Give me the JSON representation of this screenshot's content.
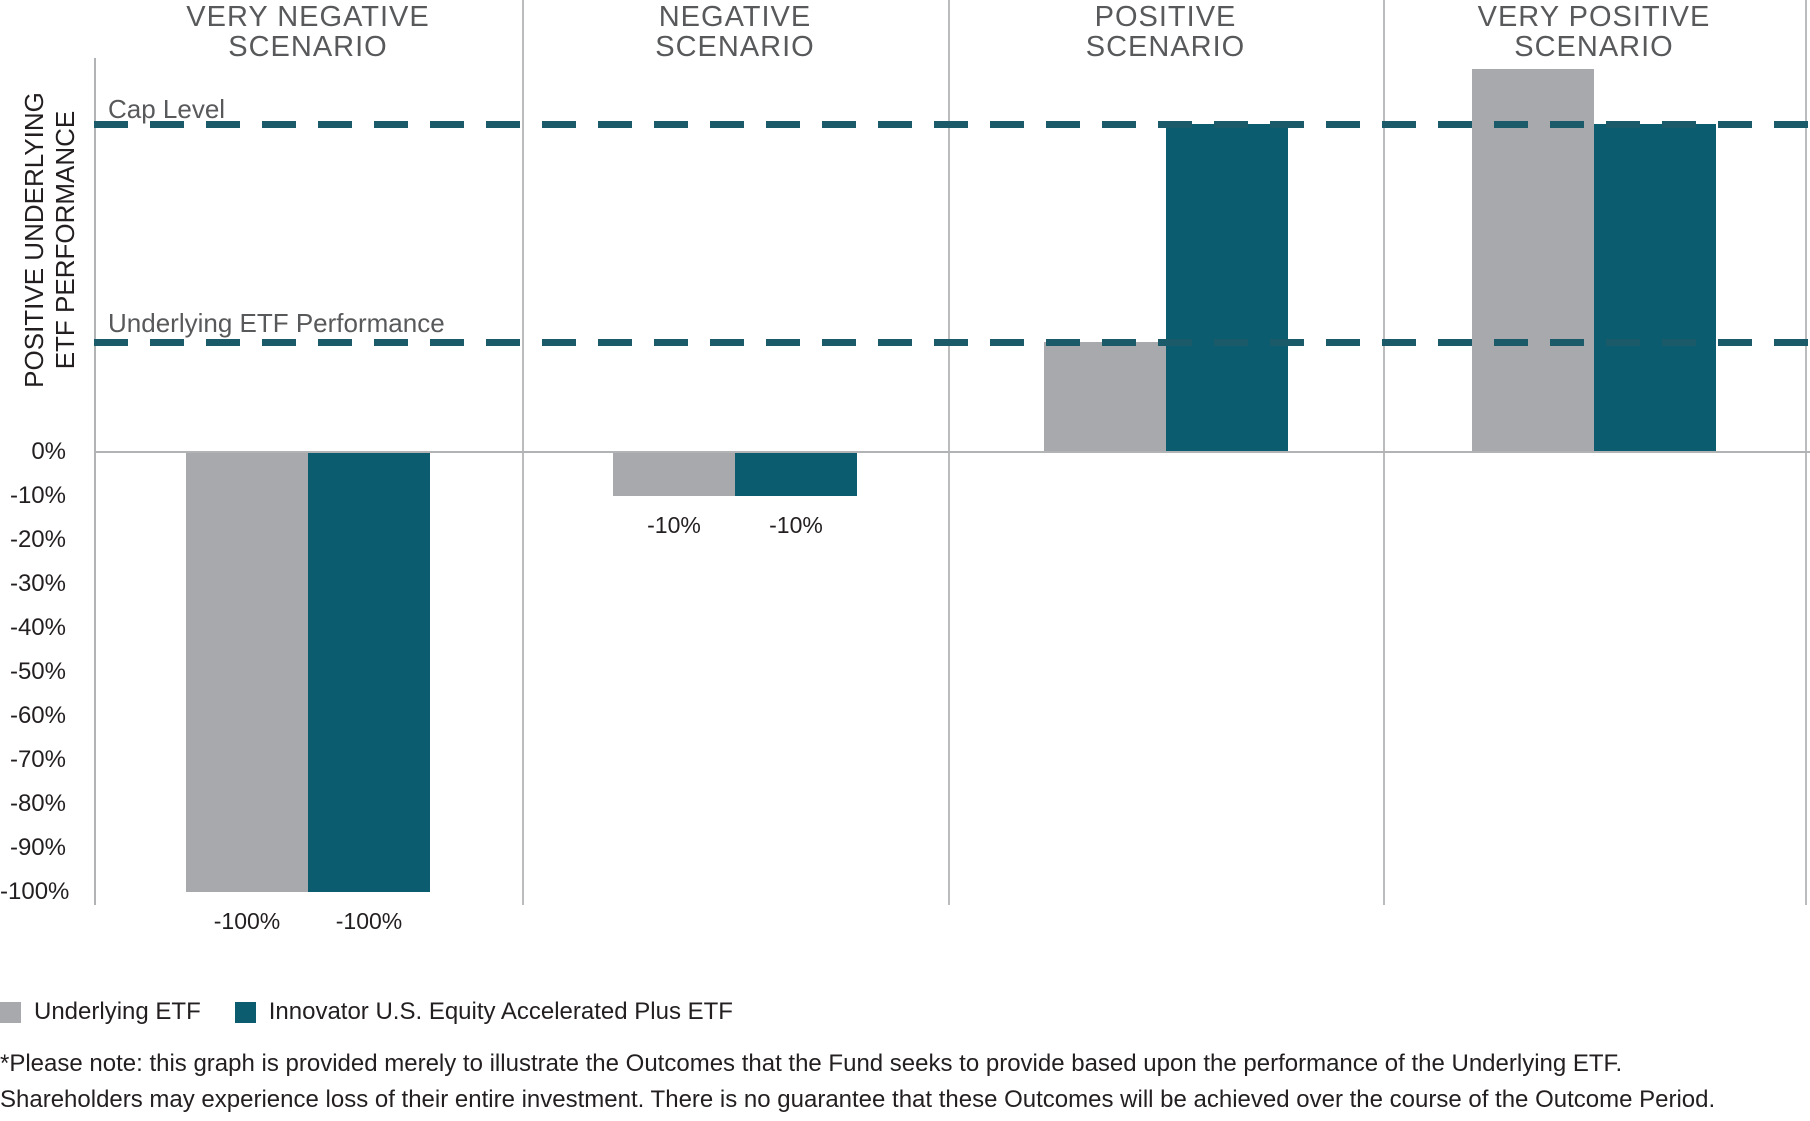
{
  "chart_data": {
    "type": "bar",
    "title": "",
    "y_axis": {
      "label_lines": [
        "POSITIVE UNDERLYING",
        "ETF PERFORMANCE"
      ],
      "ticks": [
        {
          "label": "0%",
          "value": 0
        },
        {
          "label": "-10%",
          "value": -10
        },
        {
          "label": "-20%",
          "value": -20
        },
        {
          "label": "-30%",
          "value": -30
        },
        {
          "label": "-40%",
          "value": -40
        },
        {
          "label": "-50%",
          "value": -50
        },
        {
          "label": "-60%",
          "value": -60
        },
        {
          "label": "-70%",
          "value": -70
        },
        {
          "label": "-80%",
          "value": -80
        },
        {
          "label": "-90%",
          "value": -90
        },
        {
          "label": "-100%",
          "value": -100
        }
      ],
      "numeric_range_shown": [
        0,
        -100
      ]
    },
    "reference_lines": [
      {
        "label": "Cap Level",
        "approx_value_pct": 74.5
      },
      {
        "label": "Underlying ETF Performance",
        "approx_value_pct": 25
      }
    ],
    "series_names": [
      "Underlying ETF",
      "Innovator U.S. Equity Accelerated Plus ETF"
    ],
    "panels": [
      {
        "key": "very-negative",
        "title_lines": [
          "VERY NEGATIVE",
          "SCENARIO"
        ],
        "values": {
          "underlying": -100,
          "innovator": -100
        },
        "value_labels": {
          "underlying": "-100%",
          "innovator": "-100%"
        }
      },
      {
        "key": "negative",
        "title_lines": [
          "NEGATIVE",
          "SCENARIO"
        ],
        "values": {
          "underlying": -10,
          "innovator": -10
        },
        "value_labels": {
          "underlying": "-10%",
          "innovator": "-10%"
        }
      },
      {
        "key": "positive",
        "title_lines": [
          "POSITIVE",
          "SCENARIO"
        ],
        "values": {
          "underlying": 25,
          "innovator": 74.5
        },
        "value_labels": {
          "underlying": "",
          "innovator": ""
        }
      },
      {
        "key": "very-positive",
        "title_lines": [
          "VERY POSITIVE",
          "SCENARIO"
        ],
        "values": {
          "underlying": 87,
          "innovator": 74.5
        },
        "value_labels": {
          "underlying": "",
          "innovator": ""
        }
      }
    ],
    "colors": {
      "underlying_bar": "#a7a9ac",
      "innovator_bar": "#0b5c6e",
      "dashed_line": "#1b5b69",
      "axis_gray": "#b2b3b5",
      "title_gray": "#58595b",
      "text_black": "#231f20"
    },
    "layout_hints": {
      "grid": "vertical panel separators",
      "legend_position": "bottom-left"
    }
  },
  "legend": {
    "items": [
      {
        "label": "Underlying ETF",
        "color": "#a7a9ac"
      },
      {
        "label": "Innovator U.S. Equity Accelerated Plus ETF",
        "color": "#0b5c6e"
      }
    ]
  },
  "footnote": {
    "lines": [
      "*Please note: this graph is provided merely to illustrate the Outcomes that the Fund seeks to provide based upon the performance of the Underlying ETF.",
      "Shareholders may experience loss of their entire investment. There is no guarantee that these Outcomes will be achieved over the course of the Outcome Period."
    ]
  }
}
